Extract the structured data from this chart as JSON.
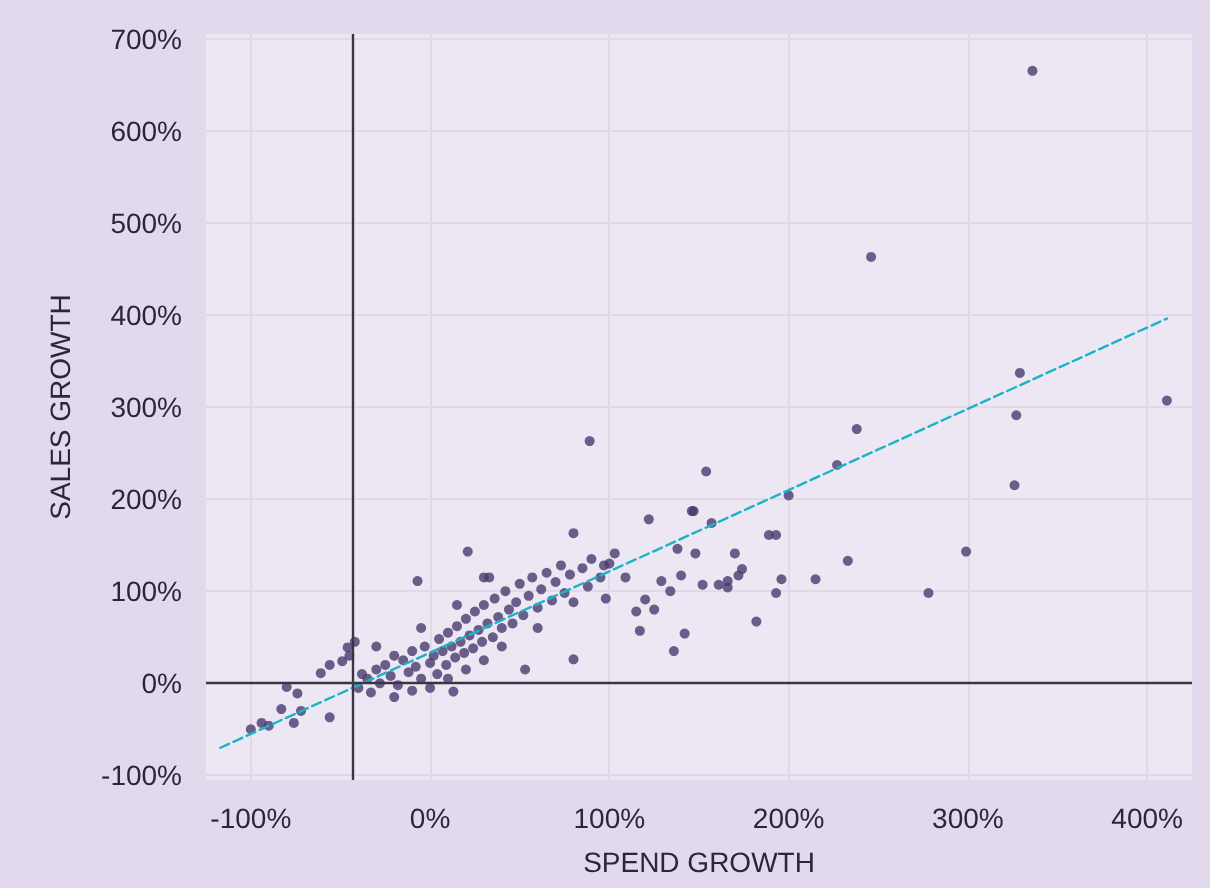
{
  "chart_data": {
    "type": "scatter",
    "xlabel": "SPEND GROWTH",
    "ylabel": "SALES GROWTH",
    "xlim": [
      -125,
      425
    ],
    "ylim": [
      -105,
      705
    ],
    "xticks": [
      {
        "value": -100,
        "label": "-100%"
      },
      {
        "value": 0,
        "label": "0%"
      },
      {
        "value": 100,
        "label": "100%"
      },
      {
        "value": 200,
        "label": "200%"
      },
      {
        "value": 300,
        "label": "300%"
      },
      {
        "value": 400,
        "label": "400%"
      }
    ],
    "yticks": [
      {
        "value": -100,
        "label": "-100%"
      },
      {
        "value": 0,
        "label": "0%"
      },
      {
        "value": 100,
        "label": "100%"
      },
      {
        "value": 200,
        "label": "200%"
      },
      {
        "value": 300,
        "label": "300%"
      },
      {
        "value": 400,
        "label": "400%"
      },
      {
        "value": 500,
        "label": "500%"
      },
      {
        "value": 600,
        "label": "600%"
      },
      {
        "value": 700,
        "label": "700%"
      }
    ],
    "grid": true,
    "ref_lines": [
      {
        "axis": "y",
        "value": 0,
        "color": "#3a3540"
      },
      {
        "axis": "x",
        "value": -43,
        "color": "#3a3540"
      }
    ],
    "series": [
      {
        "color": "#4b3b6e",
        "marker": "circle",
        "x": [
          336,
          246,
          329,
          327,
          326,
          411,
          238,
          227,
          200,
          299,
          278,
          233,
          215,
          193,
          193,
          189,
          182,
          196,
          154,
          146,
          157,
          122,
          170,
          174,
          172,
          166,
          166,
          161,
          152,
          148,
          138,
          140,
          134,
          136,
          142,
          125,
          117,
          115,
          129,
          120,
          109,
          103,
          97,
          89,
          21,
          -7,
          80,
          147,
          30,
          33,
          80,
          53,
          13,
          -56,
          -100,
          -94,
          -90,
          -83,
          -76,
          -80,
          -74,
          -72,
          -61,
          -56,
          -49,
          -46,
          -40,
          -38,
          -35,
          -33,
          -30,
          -28,
          -25,
          -22,
          -20,
          -18,
          -15,
          -12,
          -10,
          -8,
          -5,
          -3,
          0,
          2,
          4,
          5,
          7,
          9,
          10,
          12,
          14,
          15,
          17,
          19,
          20,
          22,
          24,
          25,
          27,
          29,
          30,
          32,
          35,
          36,
          38,
          40,
          42,
          44,
          46,
          48,
          50,
          52,
          55,
          57,
          60,
          62,
          65,
          68,
          70,
          73,
          75,
          78,
          80,
          85,
          88,
          90,
          95,
          98,
          100,
          -20,
          -10,
          0,
          10,
          20,
          30,
          -45,
          -42,
          -30,
          -5,
          15,
          40,
          60
        ],
        "values": [
          665,
          463,
          337,
          291,
          215,
          307,
          276,
          237,
          204,
          143,
          98,
          133,
          113,
          161,
          98,
          161,
          67,
          113,
          230,
          187,
          174,
          178,
          141,
          124,
          117,
          104,
          111,
          107,
          107,
          141,
          146,
          117,
          100,
          35,
          54,
          80,
          57,
          78,
          111,
          91,
          115,
          141,
          128,
          263,
          143,
          111,
          163,
          187,
          115,
          115,
          26,
          15,
          -9,
          -37,
          -50,
          -43,
          -46,
          -28,
          -43,
          -4,
          -11,
          -30,
          11,
          20,
          24,
          39,
          -5,
          10,
          5,
          -10,
          15,
          0,
          20,
          8,
          30,
          -2,
          25,
          12,
          35,
          18,
          5,
          40,
          22,
          30,
          10,
          48,
          35,
          20,
          55,
          40,
          28,
          62,
          45,
          33,
          70,
          52,
          38,
          78,
          58,
          45,
          85,
          65,
          50,
          92,
          72,
          60,
          100,
          80,
          65,
          88,
          108,
          74,
          95,
          115,
          82,
          102,
          120,
          90,
          110,
          128,
          98,
          118,
          88,
          125,
          105,
          135,
          115,
          92,
          130,
          -15,
          -8,
          -5,
          5,
          15,
          25,
          30,
          45,
          40,
          60,
          85,
          40,
          60
        ]
      },
      {
        "type": "line",
        "color": "#1ab4c6",
        "line_style": "dashed",
        "marker": "none",
        "x": [
          -117,
          411
        ],
        "values": [
          -70,
          396
        ]
      }
    ]
  }
}
